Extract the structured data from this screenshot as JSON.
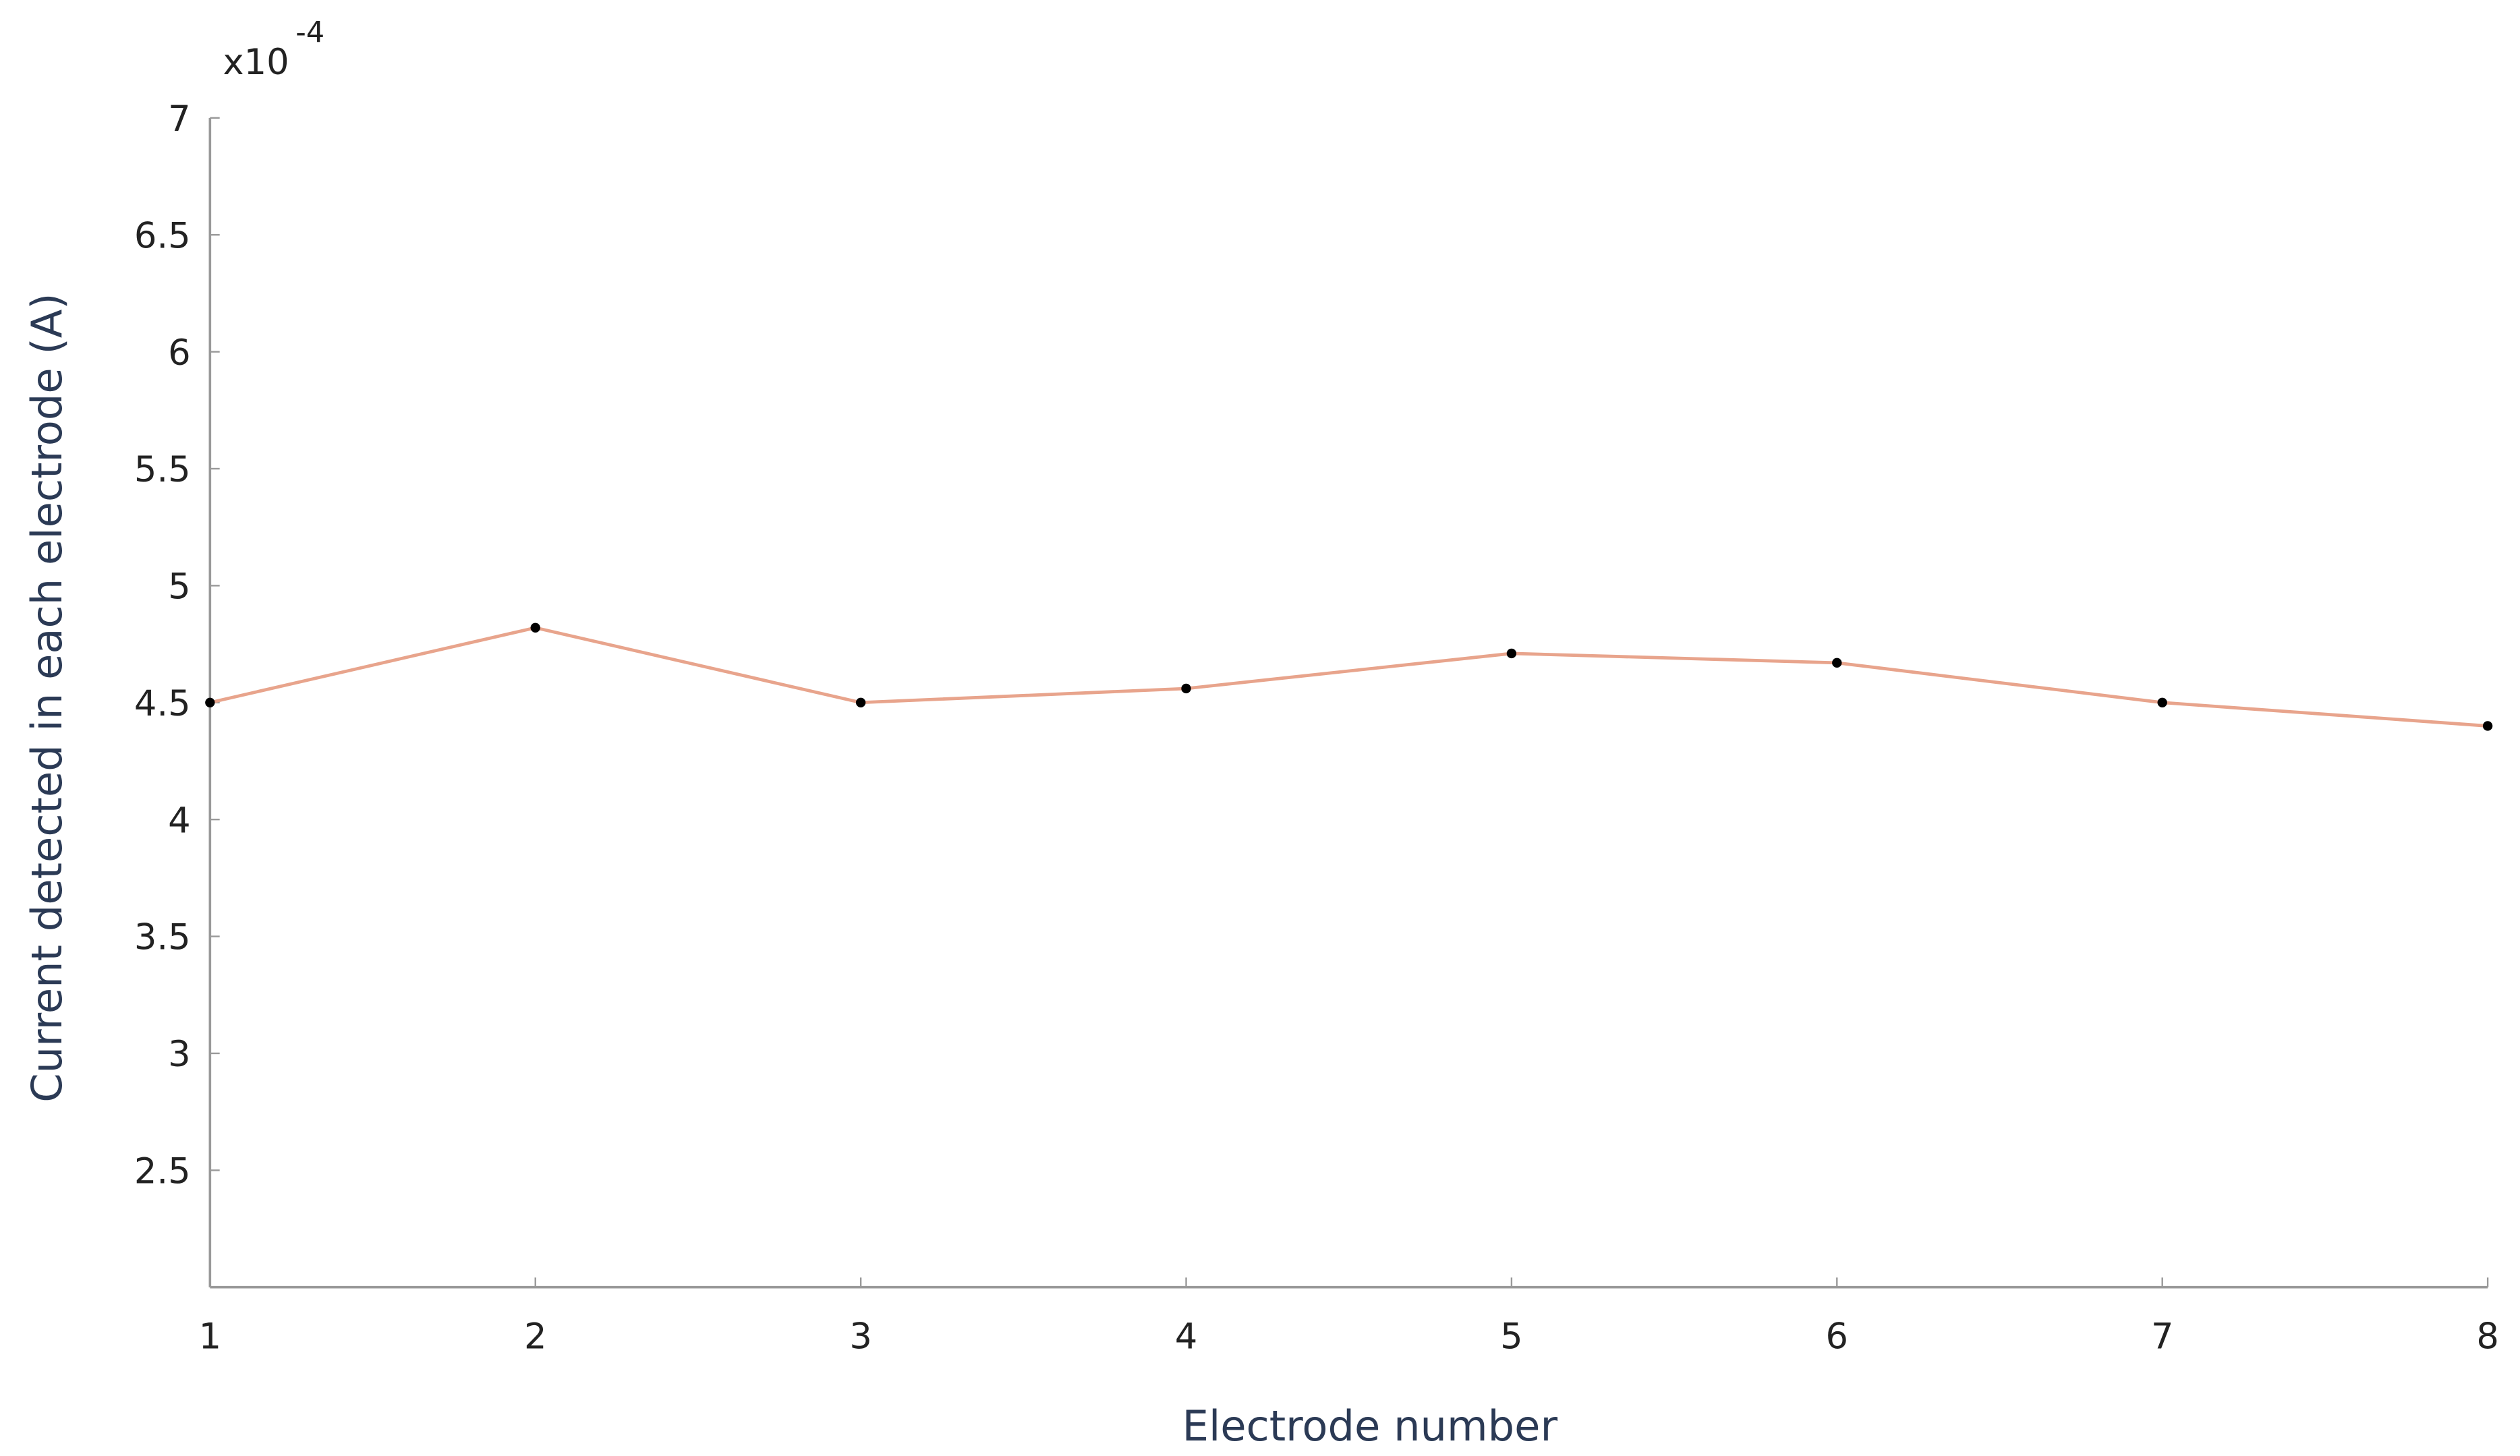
{
  "chart_data": {
    "type": "line",
    "x_label": "Electrode number",
    "y_label": "Current detected in each electrode (A)",
    "y_multiplier": {
      "base": "x10",
      "exponent": "-4"
    },
    "x": [
      1,
      2,
      3,
      4,
      5,
      6,
      7,
      8
    ],
    "series": [
      {
        "color": "#e8a48c",
        "values": [
          4.5,
          4.82,
          4.5,
          4.56,
          4.71,
          4.67,
          4.5,
          4.4
        ]
      }
    ],
    "marker_color": "#000000",
    "xlim": [
      1,
      8
    ],
    "xticks": [
      1,
      2,
      3,
      4,
      5,
      6,
      7,
      8
    ],
    "ylim": [
      2,
      7
    ],
    "yticks": [
      2.5,
      3,
      3.5,
      4,
      4.5,
      5,
      5.5,
      6,
      6.5,
      7
    ],
    "grid": false
  }
}
